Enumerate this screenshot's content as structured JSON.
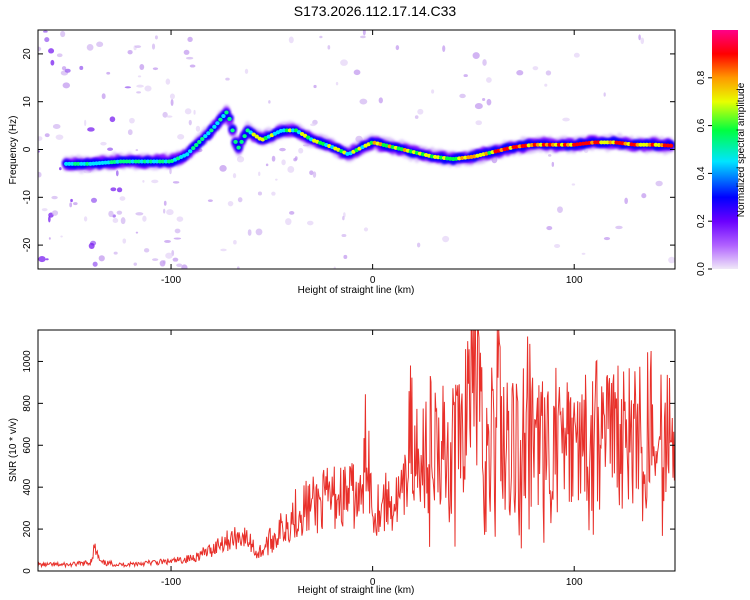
{
  "title": "S173.2026.112.17.14.C33",
  "chart_data": [
    {
      "type": "heatmap",
      "name": "spectrogram",
      "xlabel": "Height of straight line (km)",
      "ylabel": "Frequency (Hz)",
      "xlim": [
        -166,
        150
      ],
      "ylim": [
        -25,
        25
      ],
      "xticks": [
        -100,
        0,
        100
      ],
      "xtick_labels": [
        "-100",
        "0",
        "100"
      ],
      "yticks": [
        -20,
        -10,
        0,
        10,
        20
      ],
      "ytick_labels": [
        "-20",
        "-10",
        "0",
        "10",
        "20"
      ],
      "ridge": {
        "description": "frequency of maximum normalized amplitude along height",
        "x": [
          -152,
          -140,
          -125,
          -110,
          -100,
          -92,
          -85,
          -80,
          -72,
          -67,
          -62,
          -55,
          -45,
          -38,
          -30,
          -20,
          -12,
          -5,
          0,
          10,
          20,
          30,
          40,
          50,
          60,
          70,
          80,
          90,
          100,
          110,
          120,
          130,
          140,
          148
        ],
        "y": [
          -3,
          -3,
          -2.5,
          -2.5,
          -2.5,
          -1,
          2,
          4,
          8,
          0,
          4,
          2,
          4,
          4,
          2,
          0.5,
          -1,
          0.5,
          1.5,
          0.5,
          -0.5,
          -1.5,
          -2,
          -1.5,
          -0.5,
          0.5,
          1,
          1,
          1,
          1.5,
          1.5,
          1,
          1,
          0.8
        ]
      },
      "colorbar": {
        "label": "Normalized spectral amplitude",
        "range": [
          0,
          1
        ],
        "ticks": [
          0.0,
          0.2,
          0.4,
          0.6,
          0.8
        ],
        "tick_labels": [
          "0.0",
          "0.2",
          "0.4",
          "0.6",
          "0.8"
        ],
        "colors": [
          "#f0e8f8",
          "#7a00ff",
          "#0000ff",
          "#00e5ff",
          "#00ff40",
          "#e8ff00",
          "#ff9900",
          "#ff0000",
          "#ff0088"
        ]
      }
    },
    {
      "type": "line",
      "name": "snr",
      "xlabel": "Height of straight line (km)",
      "ylabel": "SNR (10 * v/v)",
      "xlim": [
        -166,
        150
      ],
      "ylim": [
        0,
        1150
      ],
      "xticks": [
        -100,
        0,
        100
      ],
      "xtick_labels": [
        "-100",
        "0",
        "100"
      ],
      "yticks": [
        0,
        200,
        400,
        600,
        800,
        1000
      ],
      "ytick_labels": [
        "0",
        "200",
        "400",
        "600",
        "800",
        "1000"
      ],
      "color": "#e8302a",
      "series": [
        {
          "name": "SNR",
          "x": [
            -166,
            -160,
            -150,
            -140,
            -138,
            -135,
            -125,
            -110,
            -100,
            -90,
            -80,
            -75,
            -70,
            -65,
            -60,
            -57,
            -50,
            -45,
            -40,
            -35,
            -30,
            -25,
            -20,
            -15,
            -10,
            -5,
            -3,
            0,
            5,
            10,
            15,
            17,
            19,
            20,
            22,
            25,
            30,
            35,
            40,
            45,
            50,
            55,
            60,
            62,
            65,
            70,
            75,
            80,
            85,
            90,
            95,
            100,
            110,
            120,
            130,
            140,
            150
          ],
          "y": [
            30,
            30,
            30,
            40,
            110,
            40,
            30,
            40,
            45,
            60,
            100,
            140,
            150,
            170,
            130,
            80,
            150,
            200,
            260,
            300,
            310,
            330,
            350,
            360,
            360,
            330,
            690,
            280,
            330,
            320,
            350,
            420,
            880,
            420,
            500,
            620,
            600,
            580,
            600,
            640,
            1110,
            560,
            600,
            1140,
            580,
            600,
            640,
            620,
            600,
            640,
            620,
            600,
            660,
            640,
            640,
            620,
            600
          ]
        }
      ]
    }
  ]
}
